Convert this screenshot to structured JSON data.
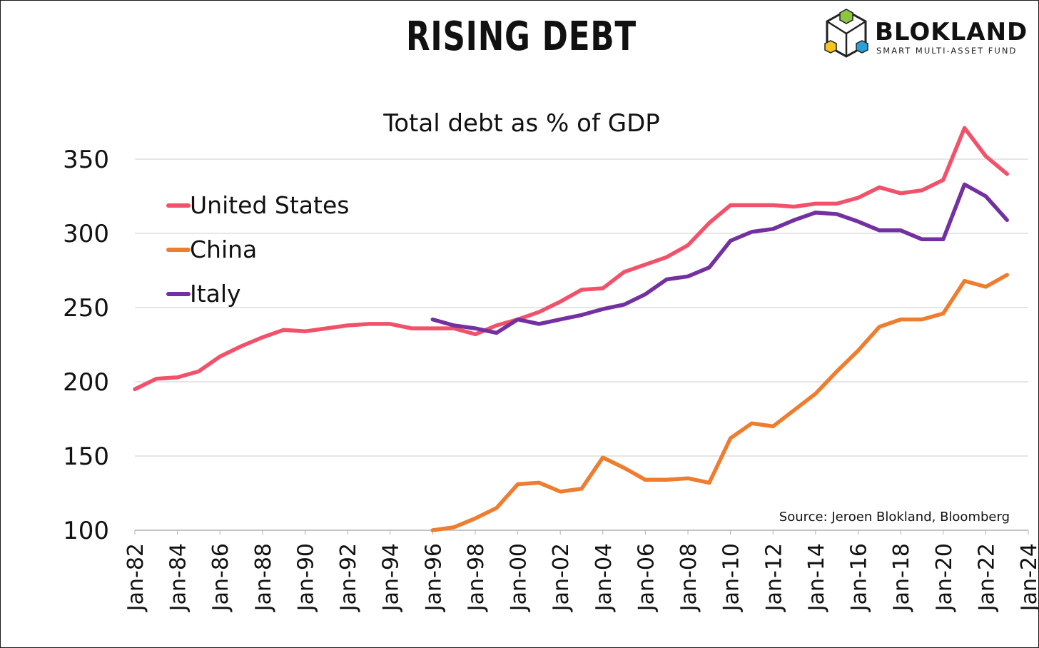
{
  "header": {
    "title": "RISING DEBT",
    "logo_name": "BLOKLAND",
    "logo_tagline": "SMART MULTI-ASSET FUND"
  },
  "colors": {
    "united_states": "#f2516a",
    "china": "#ee7d30",
    "italy": "#7230a0",
    "gridline": "#cccccc",
    "text": "#111111"
  },
  "chart_data": {
    "type": "line",
    "title": "Total debt as % of GDP",
    "xlabel": "",
    "ylabel": "",
    "ylim": [
      100,
      370
    ],
    "yticks": [
      100,
      150,
      200,
      250,
      300,
      350
    ],
    "xticks": [
      "Jan-82",
      "Jan-84",
      "Jan-86",
      "Jan-88",
      "Jan-90",
      "Jan-92",
      "Jan-94",
      "Jan-96",
      "Jan-98",
      "Jan-00",
      "Jan-02",
      "Jan-04",
      "Jan-06",
      "Jan-08",
      "Jan-10",
      "Jan-12",
      "Jan-14",
      "Jan-16",
      "Jan-18",
      "Jan-20",
      "Jan-22",
      "Jan-24"
    ],
    "grid": true,
    "legend_position": "top-left",
    "source": "Source: Jeroen Blokland, Bloomberg",
    "series": [
      {
        "name": "United States",
        "color": "#f2516a",
        "x": [
          1982,
          1983,
          1984,
          1985,
          1986,
          1987,
          1988,
          1989,
          1990,
          1991,
          1992,
          1993,
          1994,
          1995,
          1996,
          1997,
          1998,
          1999,
          2000,
          2001,
          2002,
          2003,
          2004,
          2005,
          2006,
          2007,
          2008,
          2009,
          2010,
          2011,
          2012,
          2013,
          2014,
          2015,
          2016,
          2017,
          2018,
          2019,
          2020,
          2021,
          2022,
          2023
        ],
        "values": [
          195,
          202,
          203,
          207,
          217,
          224,
          230,
          235,
          234,
          236,
          238,
          239,
          239,
          236,
          236,
          236,
          232,
          238,
          242,
          247,
          254,
          262,
          263,
          274,
          279,
          284,
          292,
          307,
          319,
          319,
          319,
          318,
          320,
          320,
          324,
          331,
          327,
          329,
          336,
          371,
          352,
          340
        ]
      },
      {
        "name": "China",
        "color": "#ee7d30",
        "x": [
          1996,
          1997,
          1998,
          1999,
          2000,
          2001,
          2002,
          2003,
          2004,
          2005,
          2006,
          2007,
          2008,
          2009,
          2010,
          2011,
          2012,
          2013,
          2014,
          2015,
          2016,
          2017,
          2018,
          2019,
          2020,
          2021,
          2022,
          2023
        ],
        "values": [
          100,
          102,
          108,
          115,
          131,
          132,
          126,
          128,
          149,
          142,
          134,
          134,
          135,
          132,
          162,
          172,
          170,
          181,
          192,
          207,
          221,
          237,
          242,
          242,
          246,
          268,
          264,
          272
        ]
      },
      {
        "name": "Italy",
        "color": "#7230a0",
        "x": [
          1996,
          1997,
          1998,
          1999,
          2000,
          2001,
          2002,
          2003,
          2004,
          2005,
          2006,
          2007,
          2008,
          2009,
          2010,
          2011,
          2012,
          2013,
          2014,
          2015,
          2016,
          2017,
          2018,
          2019,
          2020,
          2021,
          2022,
          2023
        ],
        "values": [
          242,
          238,
          236,
          233,
          242,
          239,
          242,
          245,
          249,
          252,
          259,
          269,
          271,
          277,
          295,
          301,
          303,
          309,
          314,
          313,
          308,
          302,
          302,
          296,
          296,
          333,
          325,
          309
        ]
      }
    ]
  }
}
